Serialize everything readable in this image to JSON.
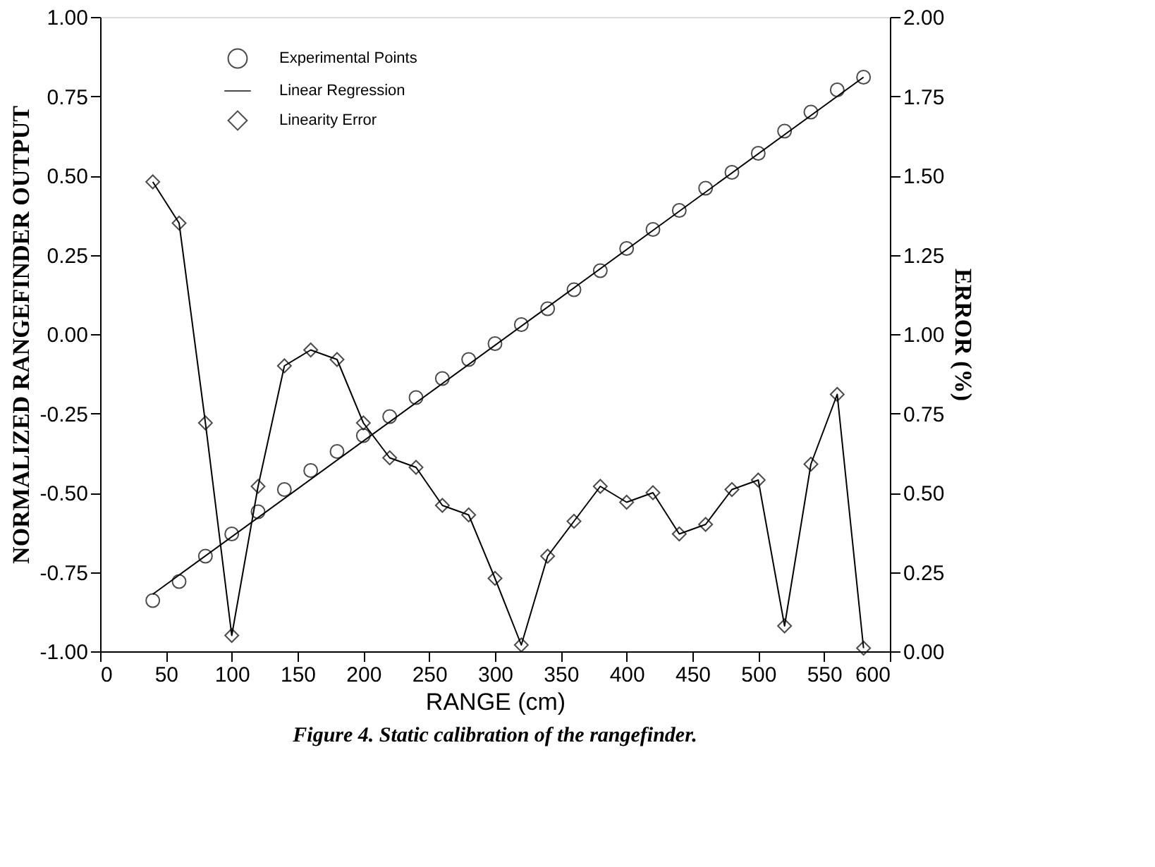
{
  "chart_data": {
    "type": "line",
    "title": "Figure 4. Static calibration of the rangefinder.",
    "xlabel": "RANGE (cm)",
    "ylabel": "NORMALIZED RANGEFINDER OUTPUT",
    "y2label": "ERROR (%)",
    "xlim": [
      0,
      600
    ],
    "xticks": [
      0,
      50,
      100,
      150,
      200,
      250,
      300,
      350,
      400,
      450,
      500,
      550,
      600
    ],
    "ylim": [
      -1,
      1
    ],
    "yticks": [
      {
        "value": -1,
        "label": "-1.00"
      },
      {
        "value": -0.75,
        "label": "-0.75"
      },
      {
        "value": -0.5,
        "label": "-0.50"
      },
      {
        "value": -0.25,
        "label": "-0.25"
      },
      {
        "value": 0,
        "label": "0.00"
      },
      {
        "value": 0.25,
        "label": "0.25"
      },
      {
        "value": 0.5,
        "label": "0.50"
      },
      {
        "value": 0.75,
        "label": "0.75"
      },
      {
        "value": 1,
        "label": "1.00"
      }
    ],
    "y2lim": [
      0,
      2
    ],
    "y2ticks": [
      {
        "value": 0,
        "label": "0.00"
      },
      {
        "value": 0.25,
        "label": "0.25"
      },
      {
        "value": 0.5,
        "label": "0.50"
      },
      {
        "value": 0.75,
        "label": "0.75"
      },
      {
        "value": 1,
        "label": "1.00"
      },
      {
        "value": 1.25,
        "label": "1.25"
      },
      {
        "value": 1.5,
        "label": "1.50"
      },
      {
        "value": 1.75,
        "label": "1.75"
      },
      {
        "value": 2,
        "label": "2.00"
      }
    ],
    "grid": false,
    "legend": "top left",
    "series": [
      {
        "name": "Experimental Points",
        "type": "scatter",
        "marker": "circle",
        "color": "#000000",
        "x": [
          40,
          60,
          80,
          100,
          120,
          140,
          160,
          180,
          200,
          220,
          240,
          260,
          280,
          300,
          320,
          340,
          360,
          380,
          400,
          420,
          440,
          460,
          480,
          500,
          520,
          540,
          560,
          580
        ],
        "values": [
          -0.84,
          -0.78,
          -0.7,
          -0.63,
          -0.56,
          -0.49,
          -0.43,
          -0.37,
          -0.32,
          -0.26,
          -0.2,
          -0.14,
          -0.08,
          -0.03,
          0.03,
          0.08,
          0.14,
          0.2,
          0.27,
          0.33,
          0.39,
          0.46,
          0.51,
          0.57,
          0.64,
          0.7,
          0.77,
          0.81
        ]
      },
      {
        "name": "Linear Regression",
        "type": "line",
        "marker": "none",
        "line_style": "solid",
        "color": "#000000",
        "x": [
          40,
          580
        ],
        "values": [
          -0.82,
          0.81
        ]
      },
      {
        "name": "Linearity Error",
        "type": "line",
        "axis": "y2",
        "marker": "diamond",
        "line_style": "solid",
        "color": "#000000",
        "x": [
          40,
          60,
          80,
          100,
          120,
          140,
          160,
          180,
          200,
          220,
          240,
          260,
          280,
          300,
          320,
          340,
          360,
          380,
          400,
          420,
          440,
          460,
          480,
          500,
          520,
          540,
          560,
          580
        ],
        "values": [
          1.48,
          1.35,
          0.72,
          0.05,
          0.52,
          0.9,
          0.95,
          0.92,
          0.72,
          0.61,
          0.58,
          0.46,
          0.43,
          0.23,
          0.02,
          0.3,
          0.41,
          0.52,
          0.47,
          0.5,
          0.37,
          0.4,
          0.51,
          0.54,
          0.08,
          0.59,
          0.81,
          0.01
        ]
      }
    ]
  }
}
